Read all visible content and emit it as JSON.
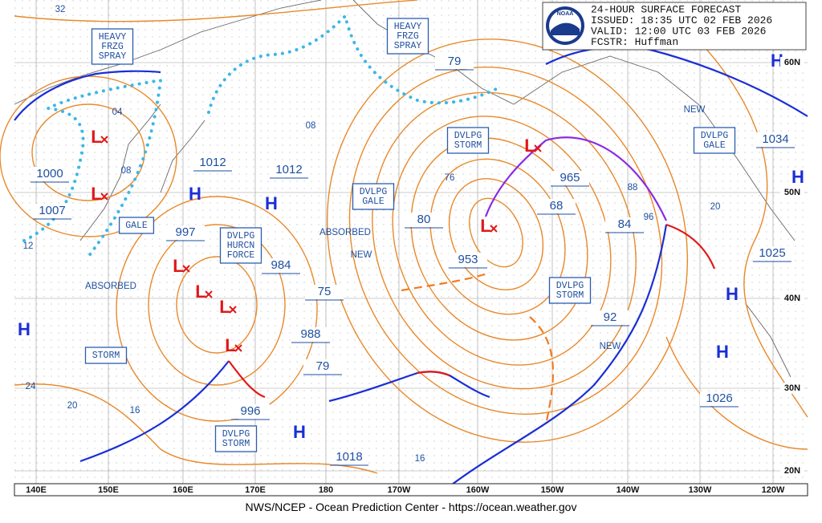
{
  "header": {
    "logo": "NOAA",
    "lines": [
      "24-HOUR SURFACE FORECAST",
      "ISSUED: 18:35 UTC 02 FEB 2026",
      "VALID:  12:00 UTC 03 FEB 2026",
      "FCSTR:  Huffman"
    ]
  },
  "boxes": [
    {
      "lines": [
        "HEAVY",
        "FRZG",
        "SPRAY"
      ]
    },
    {
      "lines": [
        "HEAVY",
        "FRZG",
        "SPRAY"
      ]
    },
    {
      "lines": [
        "DVLPG",
        "STORM"
      ]
    },
    {
      "lines": [
        "DVLPG",
        "GALE"
      ]
    },
    {
      "lines": [
        "DVLPG",
        "HURCN",
        "FORCE"
      ]
    },
    {
      "lines": [
        "GALE"
      ]
    },
    {
      "lines": [
        "STORM"
      ]
    },
    {
      "lines": [
        "DVLPG",
        "STORM"
      ]
    },
    {
      "lines": [
        "DVLPG",
        "GALE"
      ]
    },
    {
      "lines": [
        "DVLPG",
        "STORM"
      ]
    }
  ],
  "pressures": [
    1000,
    1007,
    1012,
    1012,
    997,
    984,
    988,
    996,
    1018,
    965,
    953,
    80,
    68,
    84,
    92,
    75,
    79,
    79,
    1034,
    1025,
    1026
  ],
  "isobar_labels": [
    "32",
    "04",
    "08",
    "08",
    "12",
    "76",
    "88",
    "96",
    "20",
    "24",
    "20",
    "16",
    "16"
  ],
  "notes": [
    "ABSORBED",
    "ABSORBED",
    "NEW",
    "NEW",
    "NEW"
  ],
  "highs": [
    "H",
    "H",
    "H",
    "H",
    "H",
    "H",
    "H",
    "H"
  ],
  "lows": [
    "L",
    "L",
    "L",
    "L",
    "L",
    "L",
    "L",
    "L"
  ],
  "lat_labels": [
    "60N",
    "50N",
    "40N",
    "30N",
    "20N"
  ],
  "lon_labels": [
    "140E",
    "150E",
    "160E",
    "170E",
    "180",
    "170W",
    "160W",
    "150W",
    "140W",
    "130W",
    "120W"
  ],
  "footer": "NWS/NCEP - Ocean Prediction Center - https://ocean.weather.gov"
}
